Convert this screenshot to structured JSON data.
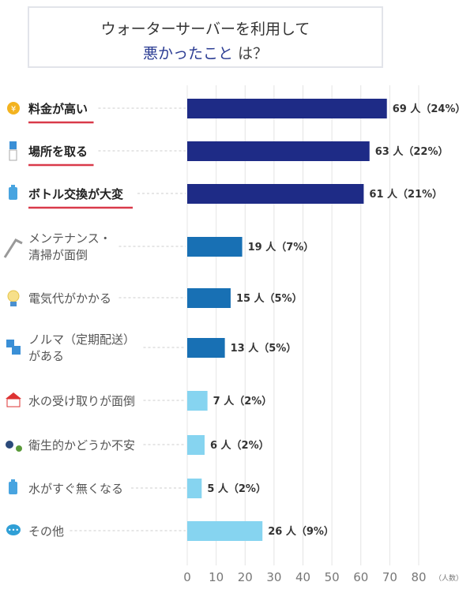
{
  "title": {
    "line1": "ウォーターサーバーを利用して",
    "highlight": "悪かったこと",
    "rest": "は？"
  },
  "chart_data": {
    "type": "bar",
    "orientation": "horizontal",
    "title": "ウォーターサーバーを利用して悪かったことは？",
    "xlabel": "（人数）",
    "xlim": [
      0,
      80
    ],
    "xticks": [
      0,
      10,
      20,
      30,
      40,
      50,
      60,
      70,
      80
    ],
    "grid": true,
    "categories": [
      {
        "lines": [
          "料金が高い"
        ],
        "bold": true,
        "icon": "yen-coin-icon"
      },
      {
        "lines": [
          "場所を取る"
        ],
        "bold": true,
        "icon": "water-server-icon"
      },
      {
        "lines": [
          "ボトル交換が大変"
        ],
        "bold": true,
        "icon": "bottle-icon"
      },
      {
        "lines": [
          "メンテナンス・",
          "清掃が面倒"
        ],
        "bold": false,
        "icon": "tool-icon"
      },
      {
        "lines": [
          "電気代がかかる"
        ],
        "bold": false,
        "icon": "light-bulb-icon"
      },
      {
        "lines": [
          "ノルマ（定期配送）",
          "がある"
        ],
        "bold": false,
        "icon": "boxes-icon"
      },
      {
        "lines": [
          "水の受け取りが面倒"
        ],
        "bold": false,
        "icon": "house-icon"
      },
      {
        "lines": [
          "衛生的かどうか不安"
        ],
        "bold": false,
        "icon": "germ-icon"
      },
      {
        "lines": [
          "水がすぐ無くなる"
        ],
        "bold": false,
        "icon": "bottle-icon"
      },
      {
        "lines": [
          "その他"
        ],
        "bold": false,
        "icon": "speech-bubble-icon"
      }
    ],
    "values": [
      69,
      63,
      61,
      19,
      15,
      13,
      7,
      6,
      5,
      26
    ],
    "value_labels": [
      "69 人（24%）",
      "63 人（22%）",
      "61 人（21%）",
      "19 人（7%）",
      "15 人（5%）",
      "13 人（5%）",
      "7 人（2%）",
      "6 人（2%）",
      "5 人（2%）",
      "26 人（9%）"
    ],
    "colors": [
      "#1e2b86",
      "#1e2b86",
      "#1e2b86",
      "#1870b4",
      "#1870b4",
      "#1870b4",
      "#86d4f0",
      "#86d4f0",
      "#86d4f0",
      "#86d4f0"
    ],
    "underline_color": "#d93a4a"
  }
}
